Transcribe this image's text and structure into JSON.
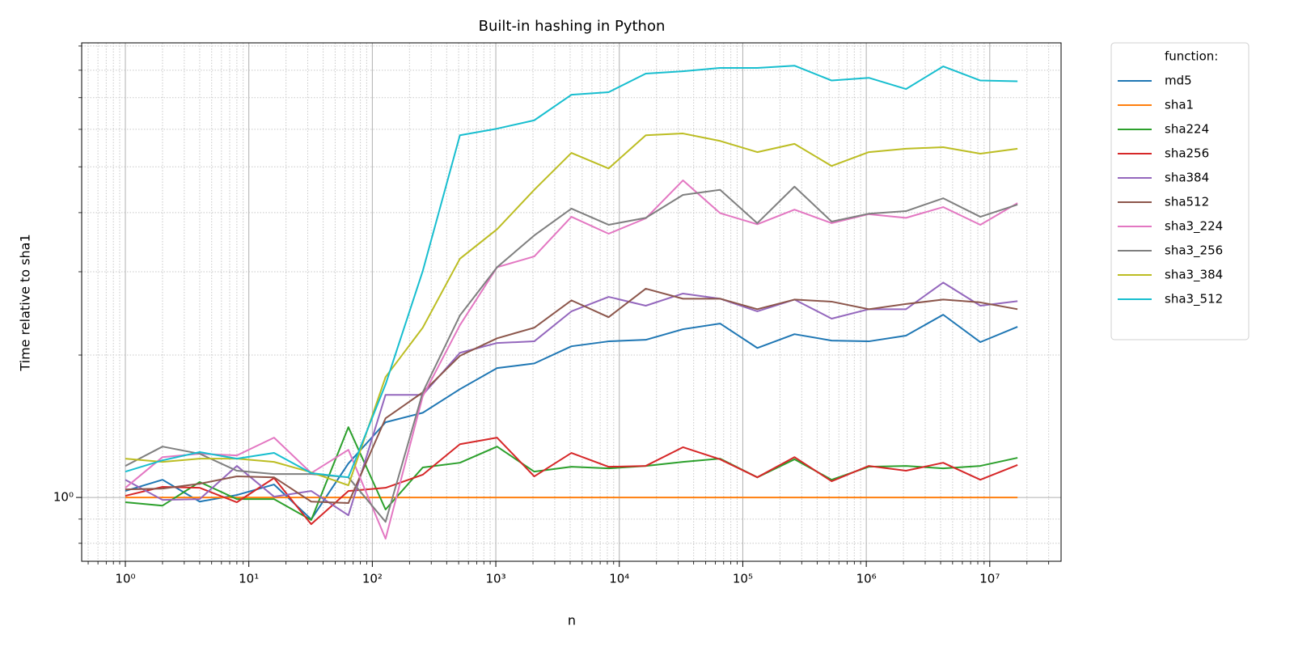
{
  "chart_data": {
    "type": "line",
    "title": "Built-in hashing in Python",
    "x_label": "n",
    "y_label": "Time relative to sha1",
    "xscale": "log",
    "yscale": "log",
    "grid": true,
    "minor_grid": true,
    "legend": "outside-upper-right",
    "legend_title": "function:",
    "x": [
      1,
      2,
      4,
      8,
      16,
      32,
      64,
      128,
      256,
      512,
      1024,
      2048,
      4096,
      8192,
      16384,
      32768,
      65536,
      131072,
      262144,
      524288,
      1048576,
      2097152,
      4194304,
      8388608,
      16777216
    ],
    "xlim": [
      0.443,
      37800000
    ],
    "ylim": [
      0.733,
      9.14
    ],
    "xticks": [
      {
        "value": 1,
        "label": "10⁰"
      },
      {
        "value": 10,
        "label": "10¹"
      },
      {
        "value": 100,
        "label": "10²"
      },
      {
        "value": 1000,
        "label": "10³"
      },
      {
        "value": 10000,
        "label": "10⁴"
      },
      {
        "value": 100000,
        "label": "10⁵"
      },
      {
        "value": 1000000,
        "label": "10⁶"
      },
      {
        "value": 10000000,
        "label": "10⁷"
      }
    ],
    "yticks": [
      {
        "value": 1,
        "label": "10⁰"
      }
    ],
    "xminorticks": [
      0.5,
      0.6,
      0.7,
      0.8,
      0.9,
      2,
      3,
      4,
      5,
      6,
      7,
      8,
      9,
      20,
      30,
      40,
      50,
      60,
      70,
      80,
      90,
      200,
      300,
      400,
      500,
      600,
      700,
      800,
      900,
      2000,
      3000,
      4000,
      5000,
      6000,
      7000,
      8000,
      9000,
      20000,
      30000,
      40000,
      50000,
      60000,
      70000,
      80000,
      90000,
      200000,
      300000,
      400000,
      500000,
      600000,
      700000,
      800000,
      900000,
      2000000,
      3000000,
      4000000,
      5000000,
      6000000,
      7000000,
      8000000,
      9000000,
      20000000,
      30000000
    ],
    "yminorticks": [
      0.8,
      0.9,
      2,
      3,
      4,
      5,
      6,
      7,
      8,
      9
    ],
    "series": [
      {
        "name": "md5",
        "color": "#1f77b4",
        "values": [
          1.032,
          1.09,
          0.98,
          1.012,
          1.065,
          0.899,
          1.18,
          1.442,
          1.51,
          1.694,
          1.877,
          1.92,
          2.087,
          2.138,
          2.154,
          2.268,
          2.331,
          2.07,
          2.214,
          2.146,
          2.138,
          2.198,
          2.434,
          2.13,
          2.295
        ]
      },
      {
        "name": "sha1",
        "color": "#ff7f0e",
        "values": [
          1,
          1,
          1,
          1,
          1,
          1,
          1,
          1,
          1,
          1,
          1,
          1,
          1,
          1,
          1,
          1,
          1,
          1,
          1,
          1,
          1,
          1,
          1,
          1,
          1
        ]
      },
      {
        "name": "sha224",
        "color": "#2ca02c",
        "values": [
          0.977,
          0.961,
          1.078,
          0.992,
          0.992,
          0.896,
          1.408,
          0.943,
          1.157,
          1.184,
          1.281,
          1.134,
          1.161,
          1.152,
          1.166,
          1.189,
          1.208,
          1.103,
          1.204,
          1.09,
          1.161,
          1.166,
          1.152,
          1.166,
          1.213
        ]
      },
      {
        "name": "sha256",
        "color": "#d62728",
        "values": [
          1.008,
          1.053,
          1.048,
          0.977,
          1.099,
          0.878,
          1.032,
          1.048,
          1.117,
          1.296,
          1.338,
          1.108,
          1.242,
          1.161,
          1.166,
          1.277,
          1.204,
          1.103,
          1.217,
          1.082,
          1.166,
          1.139,
          1.184,
          1.09,
          1.171
        ]
      },
      {
        "name": "sha384",
        "color": "#9467bd",
        "values": [
          1.09,
          0.988,
          0.992,
          1.166,
          1.004,
          1.032,
          0.917,
          1.648,
          1.648,
          2.022,
          2.121,
          2.138,
          2.474,
          2.655,
          2.543,
          2.698,
          2.631,
          2.474,
          2.62,
          2.388,
          2.5,
          2.5,
          2.846,
          2.543,
          2.6
        ]
      },
      {
        "name": "sha512",
        "color": "#8c564b",
        "values": [
          1.04,
          1.044,
          1.069,
          1.108,
          1.103,
          0.98,
          0.973,
          1.47,
          1.668,
          1.992,
          2.17,
          2.285,
          2.61,
          2.405,
          2.763,
          2.631,
          2.631,
          2.5,
          2.62,
          2.594,
          2.5,
          2.564,
          2.62,
          2.584,
          2.5
        ]
      },
      {
        "name": "sha3_224",
        "color": "#e377c2",
        "values": [
          1.048,
          1.217,
          1.237,
          1.227,
          1.338,
          1.126,
          1.261,
          0.818,
          1.636,
          2.313,
          3.067,
          3.232,
          3.92,
          3.61,
          3.89,
          4.68,
          3.99,
          3.78,
          4.06,
          3.8,
          3.97,
          3.9,
          4.11,
          3.77,
          4.19
        ]
      },
      {
        "name": "sha3_256",
        "color": "#7f7f7f",
        "values": [
          1.166,
          1.281,
          1.237,
          1.139,
          1.121,
          1.121,
          1.103,
          0.888,
          1.668,
          2.425,
          3.067,
          3.58,
          4.08,
          3.77,
          3.9,
          4.36,
          4.47,
          3.8,
          4.54,
          3.83,
          3.98,
          4.03,
          4.29,
          3.92,
          4.16
        ]
      },
      {
        "name": "sha3_384",
        "color": "#bcbd22",
        "values": [
          1.208,
          1.189,
          1.208,
          1.208,
          1.189,
          1.13,
          1.061,
          1.797,
          2.285,
          3.196,
          3.69,
          4.47,
          5.35,
          4.96,
          5.83,
          5.88,
          5.67,
          5.37,
          5.59,
          5.02,
          5.37,
          5.46,
          5.5,
          5.33,
          5.46
        ]
      },
      {
        "name": "sha3_512",
        "color": "#17becf",
        "values": [
          1.134,
          1.198,
          1.247,
          1.208,
          1.242,
          1.126,
          1.103,
          1.734,
          3.01,
          5.83,
          6.02,
          6.27,
          7.1,
          7.19,
          7.87,
          7.96,
          8.09,
          8.09,
          8.18,
          7.61,
          7.71,
          7.3,
          8.15,
          7.61,
          7.58
        ]
      }
    ]
  }
}
